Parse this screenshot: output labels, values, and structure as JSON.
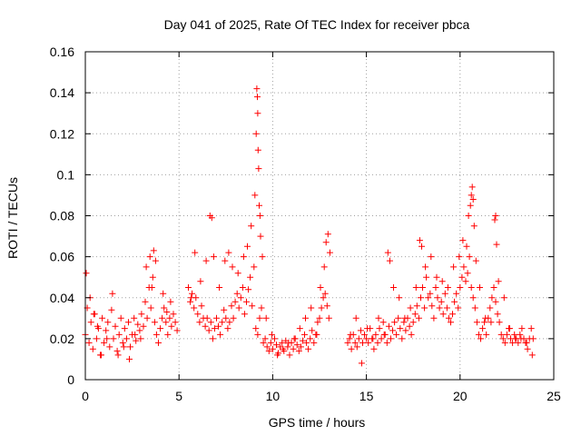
{
  "chart_data": {
    "type": "scatter",
    "title": "Day 041 of 2025, Rate Of TEC Index for receiver pbca",
    "xlabel": "GPS time / hours",
    "ylabel": "ROTI / TECUs",
    "xlim": [
      0,
      25
    ],
    "ylim": [
      0,
      0.16
    ],
    "xticks": [
      0,
      5,
      10,
      15,
      20,
      25
    ],
    "yticks": [
      0,
      0.02,
      0.04,
      0.06,
      0.08,
      0.1,
      0.12,
      0.14,
      0.16
    ],
    "xtick_labels": [
      "0",
      "5",
      "10",
      "15",
      "20",
      "25"
    ],
    "ytick_labels": [
      "0",
      "0.02",
      "0.04",
      "0.06",
      "0.08",
      "0.1",
      "0.12",
      "0.14",
      "0.16"
    ],
    "grid": true,
    "marker": "plus",
    "series_color": "#ff0000",
    "x": [
      0.0,
      0.1,
      0.2,
      0.3,
      0.4,
      0.5,
      0.6,
      0.7,
      0.8,
      0.9,
      1.0,
      1.1,
      1.2,
      1.3,
      1.4,
      1.5,
      1.6,
      1.7,
      1.8,
      1.9,
      2.0,
      2.1,
      2.2,
      2.3,
      2.4,
      2.5,
      2.6,
      2.7,
      2.8,
      2.9,
      3.0,
      3.1,
      3.2,
      3.3,
      3.4,
      3.5,
      3.6,
      3.7,
      3.8,
      3.9,
      4.0,
      4.1,
      4.2,
      4.3,
      4.4,
      4.5,
      4.6,
      4.7,
      4.8,
      4.9,
      5.5,
      5.6,
      5.7,
      5.8,
      5.9,
      6.0,
      6.1,
      6.2,
      6.3,
      6.4,
      6.5,
      6.6,
      6.7,
      6.8,
      6.9,
      7.0,
      7.1,
      7.2,
      7.3,
      7.4,
      7.5,
      7.6,
      7.7,
      7.8,
      7.9,
      8.0,
      8.1,
      8.2,
      8.3,
      8.4,
      8.5,
      8.6,
      8.7,
      8.8,
      8.9,
      9.0,
      9.1,
      9.2,
      9.3,
      9.4,
      9.5,
      9.6,
      9.7,
      9.8,
      9.9,
      10.0,
      10.1,
      10.2,
      10.3,
      10.4,
      10.5,
      10.6,
      10.7,
      10.8,
      10.9,
      11.0,
      11.1,
      11.2,
      11.3,
      11.4,
      11.5,
      11.6,
      11.7,
      11.8,
      11.9,
      12.0,
      12.1,
      12.2,
      12.3,
      12.4,
      12.5,
      12.6,
      12.7,
      12.8,
      12.9,
      13.0,
      14.0,
      14.1,
      14.2,
      14.3,
      14.4,
      14.5,
      14.6,
      14.7,
      14.8,
      14.9,
      15.0,
      15.1,
      15.2,
      15.3,
      15.4,
      15.5,
      15.6,
      15.7,
      15.8,
      15.9,
      16.0,
      16.1,
      16.2,
      16.3,
      16.4,
      16.5,
      16.6,
      16.7,
      16.8,
      16.9,
      17.0,
      17.1,
      17.2,
      17.3,
      17.4,
      17.5,
      17.6,
      17.7,
      17.8,
      17.9,
      18.0,
      18.1,
      18.2,
      18.3,
      18.4,
      18.5,
      18.6,
      18.7,
      18.8,
      18.9,
      19.0,
      19.1,
      19.2,
      19.3,
      19.4,
      19.5,
      19.6,
      19.7,
      19.8,
      19.9,
      20.0,
      20.1,
      20.2,
      20.3,
      20.4,
      20.5,
      20.6,
      20.7,
      20.8,
      20.9,
      21.0,
      21.1,
      21.2,
      21.3,
      21.4,
      21.5,
      21.6,
      21.7,
      21.8,
      21.9,
      22.0,
      22.1,
      22.2,
      22.3,
      22.4,
      22.5,
      22.6,
      22.7,
      22.8,
      22.9,
      23.0,
      23.1,
      23.2,
      23.3,
      23.4,
      23.5,
      23.6,
      23.7,
      23.8,
      23.9,
      0.05,
      0.25,
      0.45,
      0.65,
      0.85,
      1.15,
      1.45,
      1.75,
      2.05,
      2.35,
      2.65,
      2.95,
      3.25,
      3.45,
      3.55,
      3.65,
      3.75,
      4.15,
      4.35,
      4.55,
      5.65,
      5.85,
      6.15,
      6.45,
      6.65,
      6.75,
      6.85,
      7.15,
      7.45,
      7.65,
      7.85,
      8.15,
      8.45,
      8.65,
      8.85,
      9.05,
      9.12,
      9.15,
      9.18,
      9.2,
      9.22,
      9.25,
      9.28,
      9.32,
      9.35,
      9.45,
      9.65,
      9.95,
      10.25,
      10.55,
      10.85,
      11.15,
      11.45,
      11.75,
      12.05,
      12.35,
      12.55,
      12.75,
      12.85,
      12.95,
      13.05,
      14.15,
      14.45,
      14.75,
      15.05,
      15.35,
      15.65,
      15.95,
      16.15,
      16.25,
      16.45,
      16.75,
      17.05,
      17.35,
      17.65,
      17.85,
      17.95,
      18.15,
      18.45,
      18.75,
      19.05,
      19.35,
      19.65,
      19.95,
      20.15,
      20.35,
      20.45,
      20.55,
      20.6,
      20.65,
      20.7,
      20.75,
      20.85,
      21.05,
      21.35,
      21.65,
      21.85,
      21.9,
      21.95,
      22.05,
      22.35,
      22.65,
      22.95,
      23.25,
      23.55,
      23.85
    ],
    "y": [
      0.022,
      0.035,
      0.018,
      0.028,
      0.015,
      0.032,
      0.02,
      0.025,
      0.012,
      0.03,
      0.018,
      0.024,
      0.028,
      0.016,
      0.034,
      0.02,
      0.026,
      0.014,
      0.022,
      0.03,
      0.018,
      0.025,
      0.02,
      0.028,
      0.016,
      0.022,
      0.03,
      0.019,
      0.027,
      0.024,
      0.032,
      0.026,
      0.038,
      0.03,
      0.045,
      0.035,
      0.05,
      0.028,
      0.022,
      0.018,
      0.025,
      0.03,
      0.035,
      0.028,
      0.022,
      0.03,
      0.026,
      0.032,
      0.028,
      0.024,
      0.045,
      0.038,
      0.042,
      0.035,
      0.04,
      0.032,
      0.028,
      0.036,
      0.03,
      0.026,
      0.03,
      0.024,
      0.028,
      0.02,
      0.025,
      0.03,
      0.026,
      0.022,
      0.028,
      0.034,
      0.03,
      0.025,
      0.028,
      0.036,
      0.03,
      0.038,
      0.042,
      0.035,
      0.04,
      0.045,
      0.032,
      0.038,
      0.044,
      0.05,
      0.036,
      0.055,
      0.025,
      0.022,
      0.03,
      0.035,
      0.018,
      0.02,
      0.016,
      0.014,
      0.018,
      0.015,
      0.02,
      0.017,
      0.013,
      0.016,
      0.018,
      0.014,
      0.019,
      0.016,
      0.012,
      0.018,
      0.015,
      0.02,
      0.017,
      0.014,
      0.016,
      0.019,
      0.022,
      0.018,
      0.015,
      0.02,
      0.024,
      0.018,
      0.022,
      0.028,
      0.03,
      0.035,
      0.04,
      0.042,
      0.036,
      0.03,
      0.018,
      0.02,
      0.015,
      0.022,
      0.018,
      0.016,
      0.02,
      0.024,
      0.018,
      0.022,
      0.02,
      0.018,
      0.025,
      0.02,
      0.015,
      0.022,
      0.018,
      0.025,
      0.02,
      0.028,
      0.022,
      0.018,
      0.026,
      0.02,
      0.024,
      0.028,
      0.022,
      0.03,
      0.025,
      0.02,
      0.028,
      0.024,
      0.03,
      0.026,
      0.022,
      0.028,
      0.032,
      0.036,
      0.03,
      0.04,
      0.045,
      0.035,
      0.05,
      0.04,
      0.042,
      0.036,
      0.03,
      0.045,
      0.04,
      0.035,
      0.038,
      0.032,
      0.042,
      0.035,
      0.03,
      0.028,
      0.032,
      0.038,
      0.042,
      0.035,
      0.045,
      0.05,
      0.055,
      0.048,
      0.052,
      0.06,
      0.045,
      0.04,
      0.035,
      0.028,
      0.022,
      0.02,
      0.025,
      0.028,
      0.022,
      0.03,
      0.035,
      0.04,
      0.045,
      0.038,
      0.032,
      0.028,
      0.022,
      0.02,
      0.018,
      0.022,
      0.025,
      0.02,
      0.018,
      0.022,
      0.02,
      0.018,
      0.022,
      0.025,
      0.02,
      0.018,
      0.015,
      0.02,
      0.025,
      0.02,
      0.052,
      0.04,
      0.032,
      0.026,
      0.012,
      0.02,
      0.042,
      0.012,
      0.016,
      0.01,
      0.022,
      0.02,
      0.055,
      0.06,
      0.045,
      0.063,
      0.058,
      0.042,
      0.033,
      0.038,
      0.04,
      0.062,
      0.048,
      0.058,
      0.08,
      0.079,
      0.06,
      0.045,
      0.058,
      0.062,
      0.055,
      0.052,
      0.06,
      0.065,
      0.075,
      0.09,
      0.12,
      0.142,
      0.138,
      0.13,
      0.112,
      0.103,
      0.085,
      0.08,
      0.07,
      0.06,
      0.03,
      0.022,
      0.012,
      0.015,
      0.018,
      0.02,
      0.025,
      0.03,
      0.035,
      0.022,
      0.045,
      0.055,
      0.067,
      0.071,
      0.062,
      0.022,
      0.03,
      0.008,
      0.025,
      0.02,
      0.03,
      0.022,
      0.062,
      0.058,
      0.045,
      0.04,
      0.03,
      0.035,
      0.045,
      0.068,
      0.065,
      0.055,
      0.06,
      0.05,
      0.048,
      0.045,
      0.055,
      0.06,
      0.068,
      0.065,
      0.08,
      0.085,
      0.09,
      0.094,
      0.088,
      0.075,
      0.058,
      0.045,
      0.03,
      0.028,
      0.078,
      0.08,
      0.066,
      0.048,
      0.04,
      0.025,
      0.02,
      0.02,
      0.018,
      0.012
    ]
  }
}
